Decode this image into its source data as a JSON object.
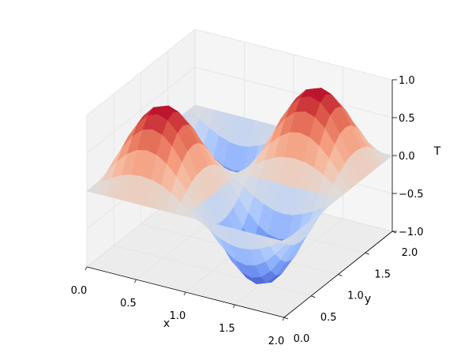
{
  "chart_data": {
    "type": "surface3d",
    "title": "",
    "xlabel": "x",
    "ylabel": "y",
    "zlabel": "T",
    "xlim": [
      0.0,
      2.0
    ],
    "ylim": [
      0.0,
      2.0
    ],
    "zlim": [
      -1.0,
      1.0
    ],
    "x_ticks": [
      "0.0",
      "0.5",
      "1.0",
      "1.5",
      "2.0"
    ],
    "y_ticks": [
      "0.0",
      "0.5",
      "1.0",
      "1.5",
      "2.0"
    ],
    "z_ticks": [
      "−1.0",
      "−0.5",
      "0.0",
      "0.5",
      "1.0"
    ],
    "colormap": "coolwarm",
    "grid": true,
    "grid_resolution": 21,
    "surface": "T = sin(pi*x) * sin(pi*y)",
    "peaks": [
      {
        "x": 0.5,
        "y": 0.5,
        "T": 1.0
      },
      {
        "x": 1.5,
        "y": 1.5,
        "T": 1.0
      }
    ],
    "troughs": [
      {
        "x": 1.5,
        "y": 0.5,
        "T": -1.0
      },
      {
        "x": 0.5,
        "y": 1.5,
        "T": -1.0
      }
    ],
    "pane_color": "#f2f2f2",
    "grid_color": "#e3e3e3"
  }
}
